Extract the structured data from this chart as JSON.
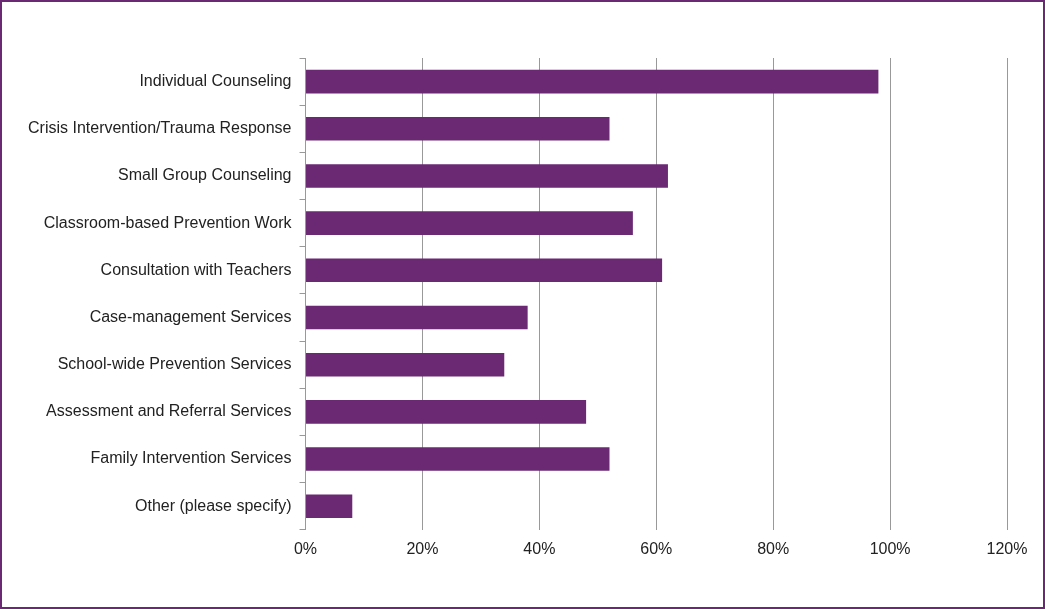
{
  "chart_data": {
    "type": "bar",
    "orientation": "horizontal",
    "categories": [
      "Individual Counseling",
      "Crisis Intervention/Trauma Response",
      "Small Group Counseling",
      "Classroom-based Prevention Work",
      "Consultation with Teachers",
      "Case-management Services",
      "School-wide Prevention Services",
      "Assessment and Referral Services",
      "Family Intervention Services",
      "Other (please specify)"
    ],
    "values": [
      98,
      52,
      62,
      56,
      61,
      38,
      34,
      48,
      52,
      8
    ],
    "color": "#6b2873",
    "xlim": [
      0,
      120
    ],
    "xticks": [
      {
        "value": 0,
        "label": "0%"
      },
      {
        "value": 20,
        "label": "20%"
      },
      {
        "value": 40,
        "label": "40%"
      },
      {
        "value": 60,
        "label": "60%"
      },
      {
        "value": 80,
        "label": "80%"
      },
      {
        "value": 100,
        "label": "100%"
      },
      {
        "value": 120,
        "label": "120%"
      }
    ],
    "grid": "x",
    "legend": false
  }
}
